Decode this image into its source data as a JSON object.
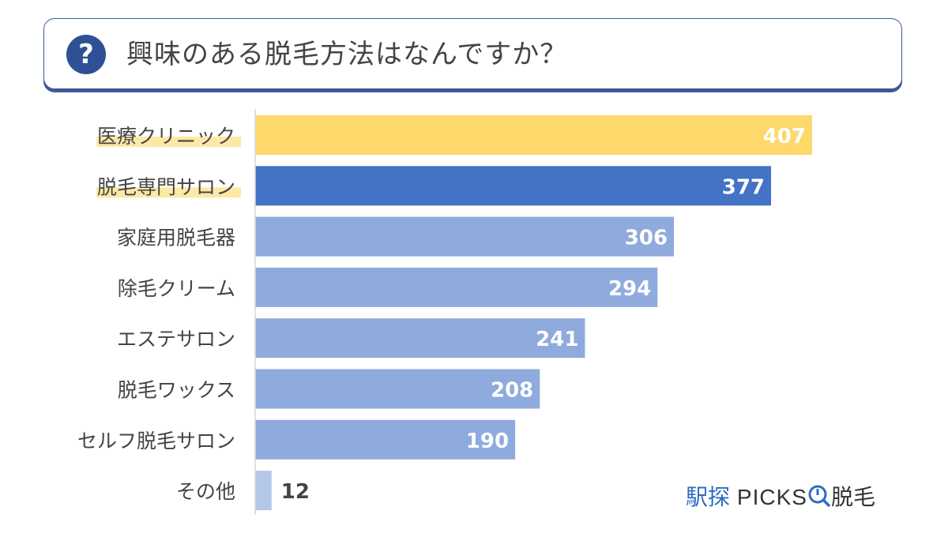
{
  "header": {
    "title": "興味のある脱毛方法はなんですか？",
    "icon": "question-circle-icon"
  },
  "logo": {
    "part1": "駅探",
    "part2": "PICKS",
    "part3": "脱毛",
    "icon": "magnifier-icon"
  },
  "chart_data": {
    "type": "bar",
    "orientation": "horizontal",
    "categories": [
      "医療クリニック",
      "脱毛専門サロン",
      "家庭用脱毛器",
      "除毛クリーム",
      "エステサロン",
      "脱毛ワックス",
      "セルフ脱毛サロン",
      "その他"
    ],
    "values": [
      407,
      377,
      306,
      294,
      241,
      208,
      190,
      12
    ],
    "colors": [
      "#fdd86b",
      "#4472c4",
      "#8faadc",
      "#8faadc",
      "#8faadc",
      "#8faadc",
      "#8faadc",
      "#b4c7e7"
    ],
    "highlighted_labels": [
      0,
      1
    ],
    "highlight_color": "#fde9a6",
    "xlim": [
      0,
      407
    ],
    "grid": false,
    "data_labels": true
  }
}
